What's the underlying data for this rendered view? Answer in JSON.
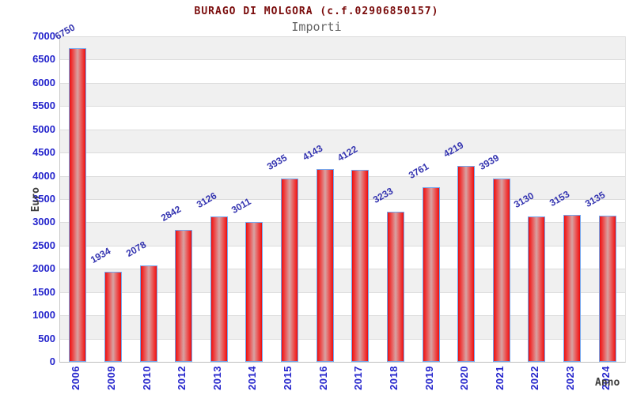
{
  "header": {
    "title": "BURAGO DI MOLGORA (c.f.02906850157)",
    "subtitle": "Importi"
  },
  "chart_data": {
    "type": "bar",
    "title": "BURAGO DI MOLGORA (c.f.02906850157)",
    "subtitle": "Importi",
    "xlabel": "Anno",
    "ylabel": "Euro",
    "categories": [
      "2006",
      "2009",
      "2010",
      "2012",
      "2013",
      "2014",
      "2015",
      "2016",
      "2017",
      "2018",
      "2019",
      "2020",
      "2021",
      "2022",
      "2023",
      "2024"
    ],
    "values": [
      6750,
      1934,
      2078,
      2842,
      3126,
      3011,
      3935,
      4143,
      4122,
      3233,
      3761,
      4219,
      3939,
      3130,
      3153,
      3135
    ],
    "ylim": [
      0,
      7000
    ],
    "ytick_step": 500,
    "yticks": [
      0,
      500,
      1000,
      1500,
      2000,
      2500,
      3000,
      3500,
      4000,
      4500,
      5000,
      5500,
      6000,
      6500,
      7000
    ],
    "grid": "alternating horizontal bands every 500, gray/white, gridline each 500",
    "legend": "none",
    "colors": {
      "bar_edge": "#e01111",
      "bar_center": "#d7a3a3",
      "bar_border": "#74a7ee",
      "tick_label": "#2424cc",
      "value_label": "#3434b0",
      "title": "#7a0c0c",
      "subtitle": "#666666",
      "axis_title": "#3d3d3d",
      "band_gray": "#f0f0f0",
      "band_white": "#ffffff",
      "gridline": "#dcdcdc"
    }
  }
}
